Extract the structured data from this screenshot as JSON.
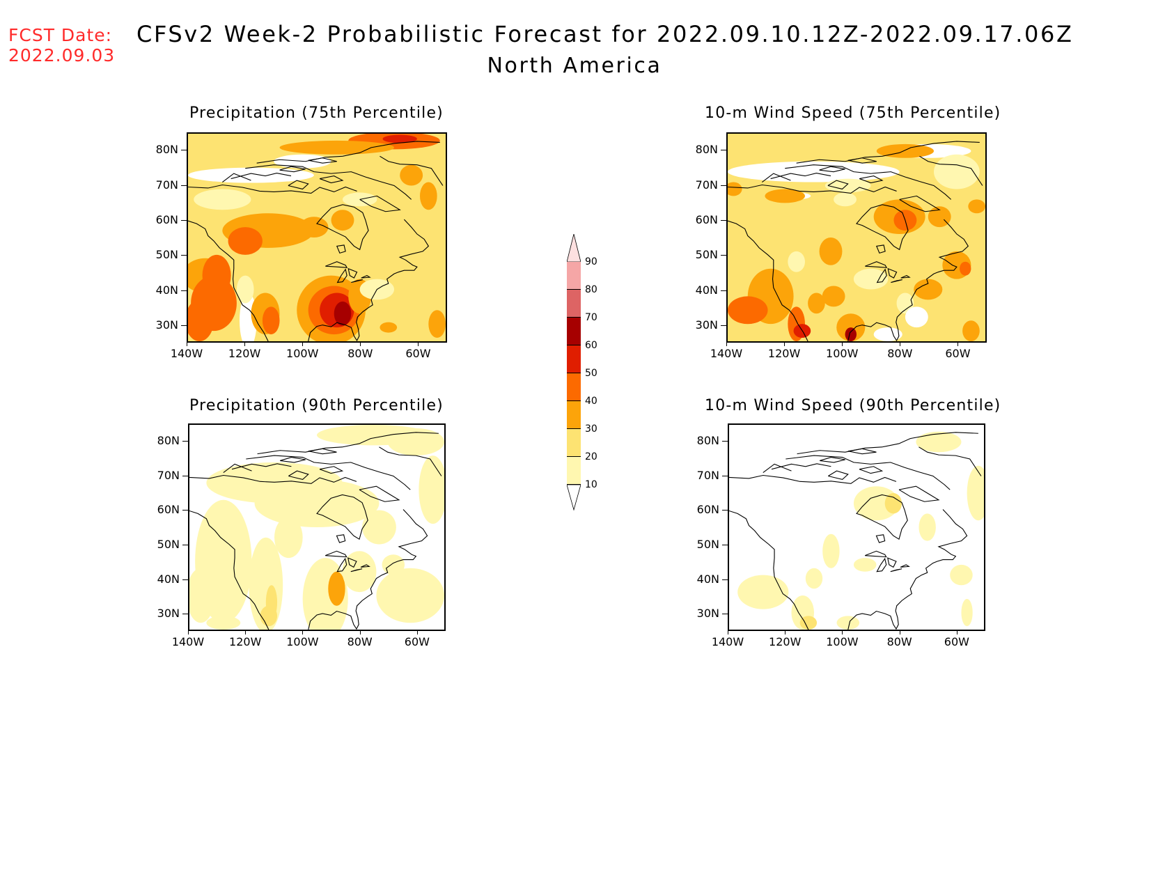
{
  "header": {
    "fcst_label": "FCST Date:",
    "fcst_date": "2022.09.03",
    "title": "CFSv2 Week-2 Probabilistic Forecast for 2022.09.10.12Z-2022.09.17.06Z",
    "subtitle": "North America"
  },
  "colors": {
    "fcst_text": "#ff2a2a",
    "scale": [
      "#fff7b0",
      "#fde372",
      "#fca40a",
      "#fc6a00",
      "#e01e00",
      "#a60000",
      "#dd6464",
      "#f5a6a6",
      "#fde0e0"
    ]
  },
  "axes": {
    "lat_ticks": [
      "80N",
      "70N",
      "60N",
      "50N",
      "40N",
      "30N"
    ],
    "lon_ticks": [
      "140W",
      "120W",
      "100W",
      "80W",
      "60W"
    ],
    "lon_range": [
      -140,
      -50
    ],
    "lat_range": [
      25,
      85
    ]
  },
  "colorbar": {
    "levels": [
      "10",
      "20",
      "30",
      "40",
      "50",
      "60",
      "70",
      "80",
      "90"
    ]
  },
  "panels": [
    {
      "title": "Precipitation (75th Percentile)",
      "field": "precip75"
    },
    {
      "title": "10-m Wind Speed (75th Percentile)",
      "field": "wind75"
    },
    {
      "title": "Precipitation (90th Percentile)",
      "field": "precip90"
    },
    {
      "title": "10-m Wind Speed (90th Percentile)",
      "field": "wind90"
    }
  ]
}
